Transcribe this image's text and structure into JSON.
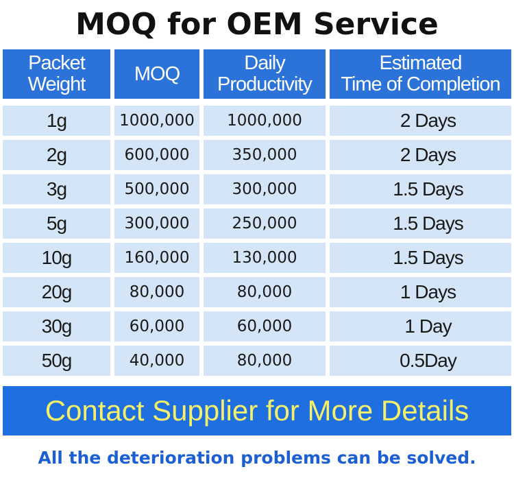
{
  "title": "MOQ for OEM Service",
  "table": {
    "headers": [
      "Packet\nWeight",
      "MOQ",
      "Daily\nProductivity",
      "Estimated\nTime of Completion"
    ],
    "rows": [
      [
        "1g",
        "1000,000",
        "1000,000",
        "2 Days"
      ],
      [
        "2g",
        "600,000",
        "350,000",
        "2 Days"
      ],
      [
        "3g",
        "500,000",
        "300,000",
        "1.5 Days"
      ],
      [
        "5g",
        "300,000",
        "250,000",
        "1.5 Days"
      ],
      [
        "10g",
        "160,000",
        "130,000",
        "1.5 Days"
      ],
      [
        "20g",
        "80,000",
        "80,000",
        "1 Days"
      ],
      [
        "30g",
        "60,000",
        "60,000",
        "1 Day"
      ],
      [
        "50g",
        "40,000",
        "80,000",
        "0.5Day"
      ]
    ]
  },
  "banner": "Contact Supplier for More Details",
  "footer": "All the deterioration problems can be solved.",
  "colors": {
    "header_bg": "#2b73d9",
    "row_bg": "#d3e5f6",
    "banner_bg": "#1f6fe0",
    "banner_text": "#f4f06a",
    "footer_text": "#1c5fd4"
  }
}
